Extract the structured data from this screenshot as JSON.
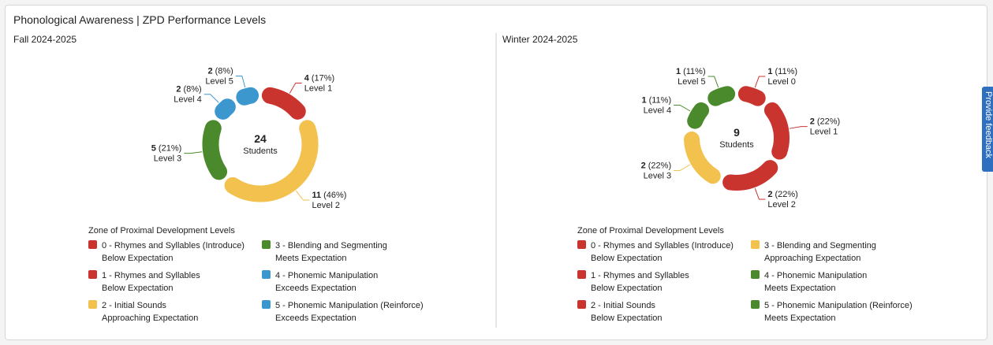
{
  "title": "Phonological Awareness | ZPD Performance Levels",
  "feedback": "Provide feedback",
  "chart_data": [
    {
      "type": "donut",
      "title": "Fall 2024-2025",
      "total": 24,
      "total_label": "Students",
      "categories": [
        "Level 1",
        "Level 2",
        "Level 3",
        "Level 4",
        "Level 5"
      ],
      "values": [
        4,
        11,
        5,
        2,
        2
      ],
      "percent_labels": [
        "(17%)",
        "(46%)",
        "(21%)",
        "(8%)",
        "(8%)"
      ],
      "colors": [
        "#c9342f",
        "#f2c14e",
        "#4a8a2c",
        "#3d97cf",
        "#3d97cf"
      ],
      "legend_title": "Zone of Proximal Development Levels",
      "legend": [
        {
          "label": "0 - Rhymes and Syllables (Introduce)",
          "status": "Below Expectation",
          "color": "#c9342f"
        },
        {
          "label": "1 - Rhymes and Syllables",
          "status": "Below Expectation",
          "color": "#c9342f"
        },
        {
          "label": "2 - Initial Sounds",
          "status": "Approaching Expectation",
          "color": "#f2c14e"
        },
        {
          "label": "3 - Blending and Segmenting",
          "status": "Meets Expectation",
          "color": "#4a8a2c"
        },
        {
          "label": "4 - Phonemic Manipulation",
          "status": "Exceeds Expectation",
          "color": "#3d97cf"
        },
        {
          "label": "5 - Phonemic Manipulation (Reinforce)",
          "status": "Exceeds Expectation",
          "color": "#3d97cf"
        }
      ]
    },
    {
      "type": "donut",
      "title": "Winter 2024-2025",
      "total": 9,
      "total_label": "Students",
      "categories": [
        "Level 0",
        "Level 1",
        "Level 2",
        "Level 3",
        "Level 4",
        "Level 5"
      ],
      "values": [
        1,
        2,
        2,
        2,
        1,
        1
      ],
      "percent_labels": [
        "(11%)",
        "(22%)",
        "(22%)",
        "(22%)",
        "(11%)",
        "(11%)"
      ],
      "colors": [
        "#c9342f",
        "#c9342f",
        "#c9342f",
        "#f2c14e",
        "#4a8a2c",
        "#4a8a2c"
      ],
      "legend_title": "Zone of Proximal Development Levels",
      "legend": [
        {
          "label": "0 - Rhymes and Syllables (Introduce)",
          "status": "Below Expectation",
          "color": "#c9342f"
        },
        {
          "label": "1 - Rhymes and Syllables",
          "status": "Below Expectation",
          "color": "#c9342f"
        },
        {
          "label": "2 - Initial Sounds",
          "status": "Below Expectation",
          "color": "#c9342f"
        },
        {
          "label": "3 - Blending and Segmenting",
          "status": "Approaching Expectation",
          "color": "#f2c14e"
        },
        {
          "label": "4 - Phonemic Manipulation",
          "status": "Meets Expectation",
          "color": "#4a8a2c"
        },
        {
          "label": "5 - Phonemic Manipulation (Reinforce)",
          "status": "Meets Expectation",
          "color": "#4a8a2c"
        }
      ]
    }
  ]
}
